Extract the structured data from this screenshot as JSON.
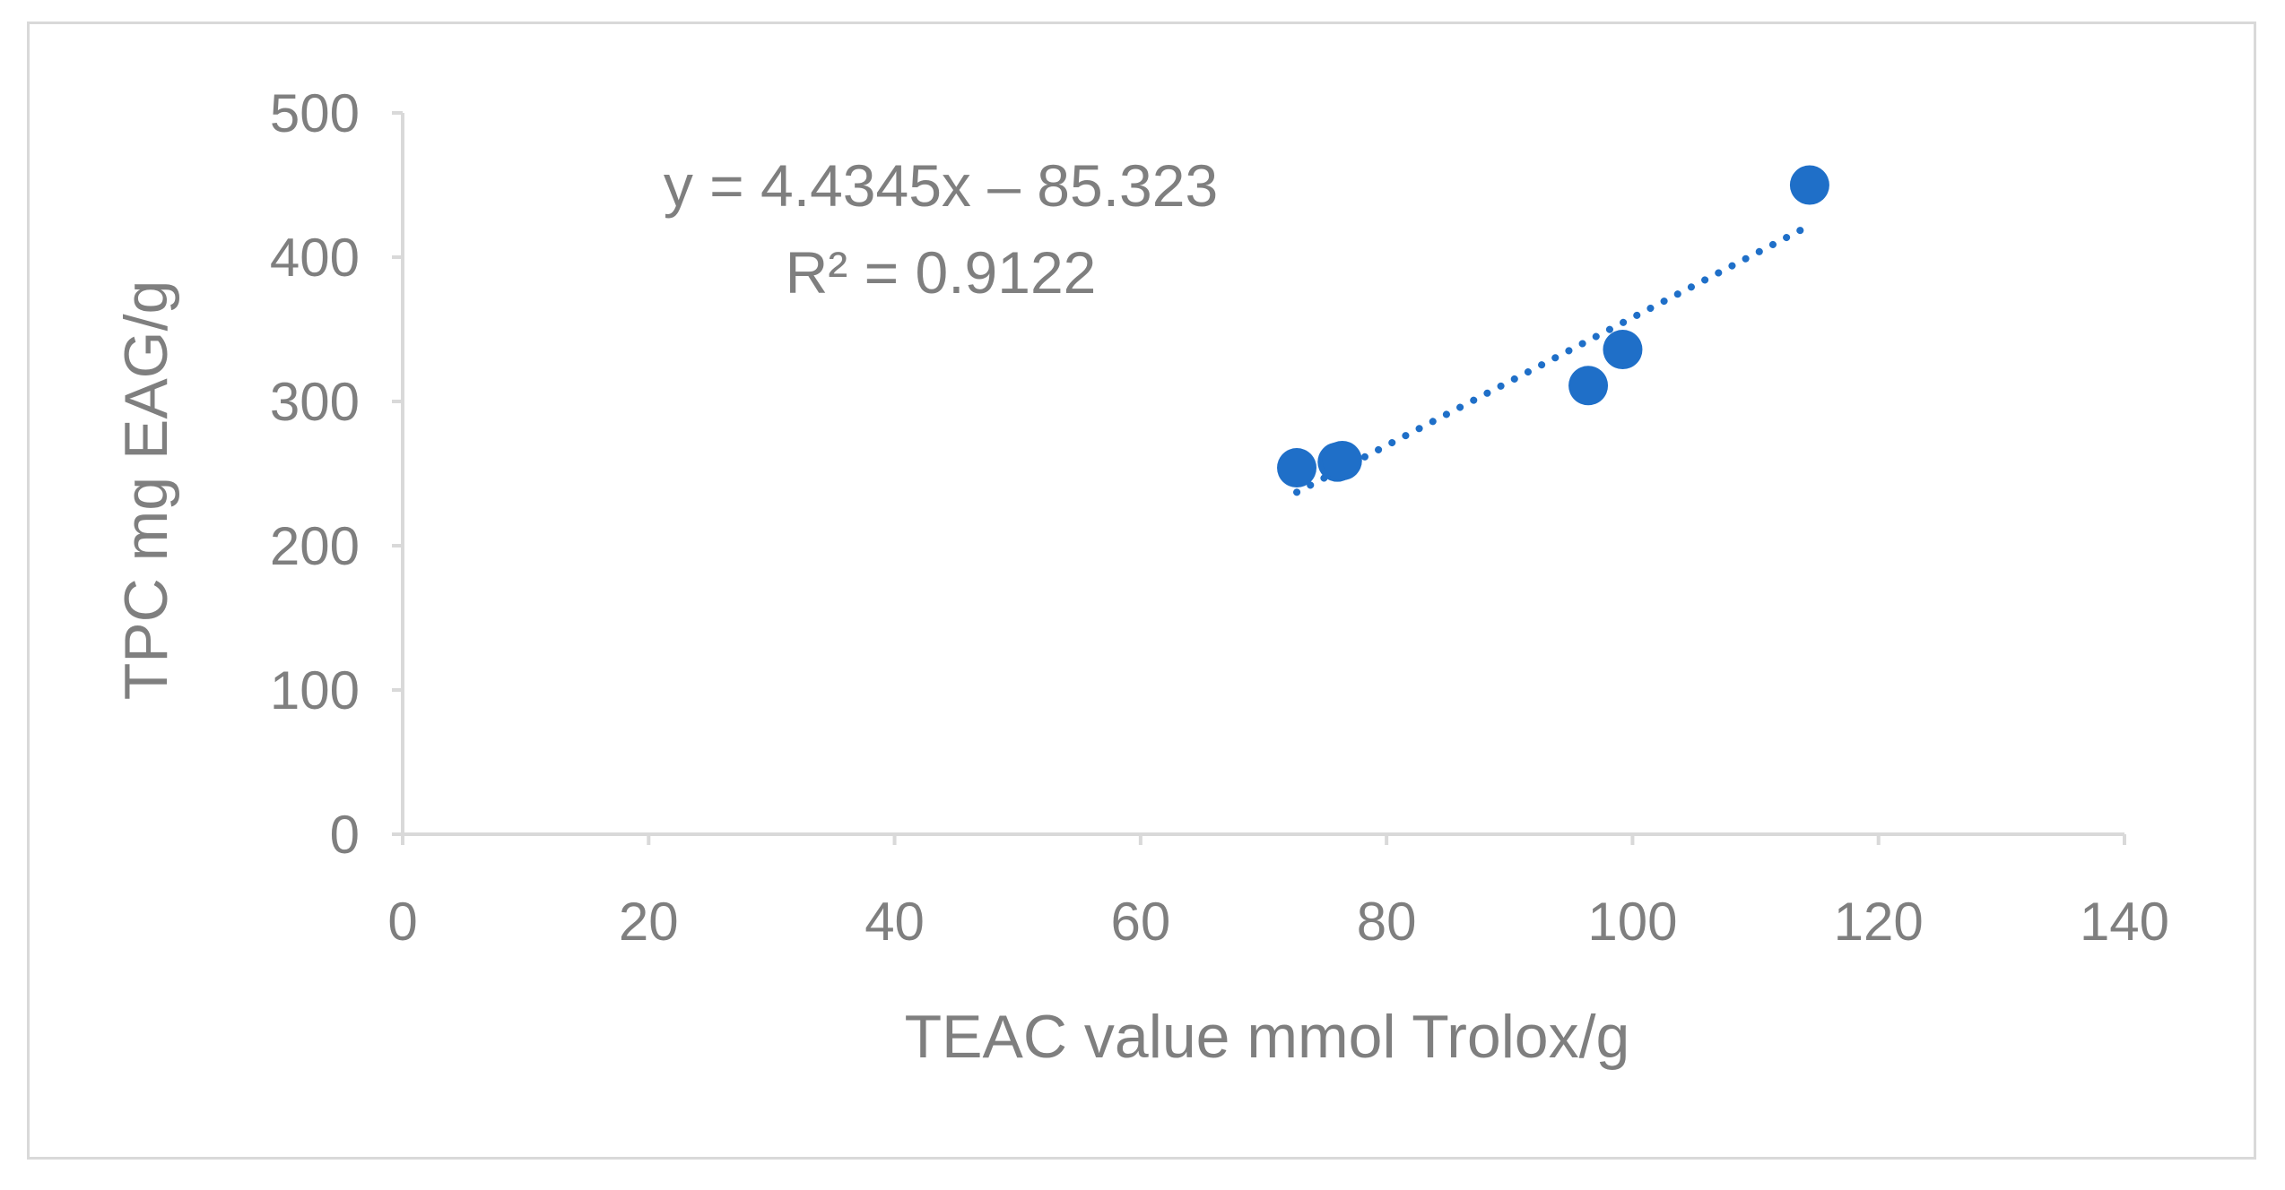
{
  "chart_data": {
    "type": "scatter",
    "title": "",
    "xlabel": "TEAC value mmol Trolox/g",
    "ylabel": "TPC mg EAG/g",
    "xlim": [
      0,
      140
    ],
    "ylim": [
      0,
      500
    ],
    "x_ticks": [
      "0",
      "20",
      "40",
      "60",
      "80",
      "100",
      "120",
      "140"
    ],
    "y_ticks": [
      "0",
      "100",
      "200",
      "300",
      "400",
      "500"
    ],
    "grid": false,
    "legend": "none",
    "series": [
      {
        "color": "#1f6fc8",
        "points": [
          {
            "x": 72.7,
            "y": 254
          },
          {
            "x": 76.0,
            "y": 258
          },
          {
            "x": 76.4,
            "y": 259
          },
          {
            "x": 96.4,
            "y": 311
          },
          {
            "x": 99.2,
            "y": 336
          },
          {
            "x": 114.4,
            "y": 450
          }
        ]
      }
    ],
    "trendline": {
      "type": "linear",
      "style": "dotted",
      "color": "#1f6fc8",
      "slope": 4.4345,
      "intercept": -85.323,
      "x_range": [
        72.7,
        114.4
      ],
      "equation": "y = 4.4345x – 85.323",
      "r_squared": "R² = 0.9122"
    },
    "axis_color": "#d9d9d9"
  }
}
